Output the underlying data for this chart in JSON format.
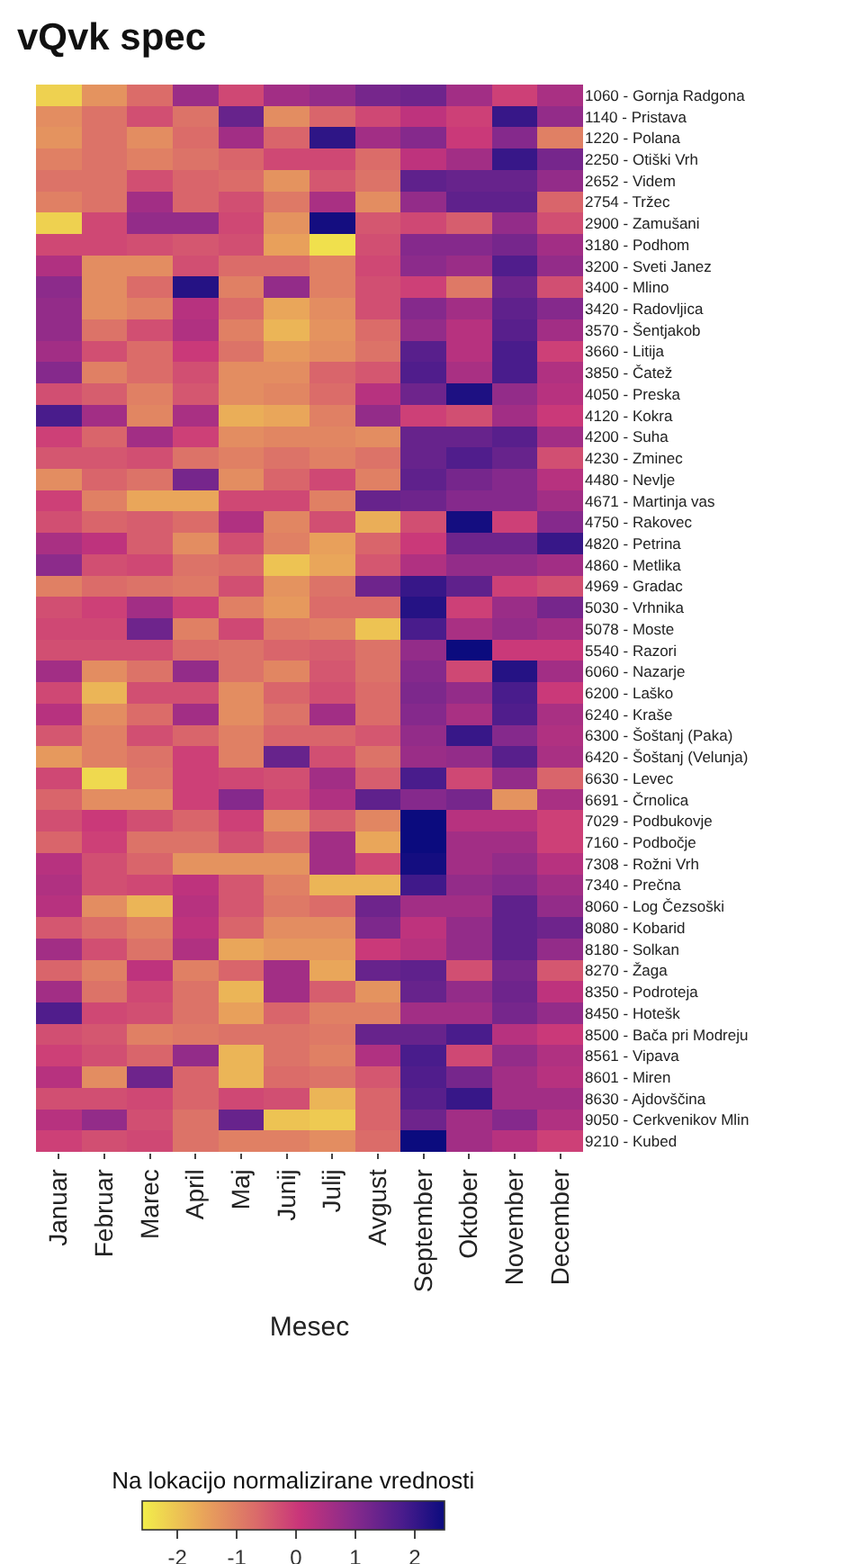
{
  "chart_data": {
    "type": "heatmap",
    "title": "vQvk spec",
    "xlabel": "Mesec",
    "clabel": "Na lokacijo normalizirane vrednosti",
    "categories": [
      "Januar",
      "Februar",
      "Marec",
      "April",
      "Maj",
      "Junij",
      "Julij",
      "Avgust",
      "September",
      "Oktober",
      "November",
      "December"
    ],
    "y_categories": [
      "1060 - Gornja Radgona",
      "1140 - Pristava",
      "1220 - Polana",
      "2250 - Otiški Vrh",
      "2652 - Videm",
      "2754 - Tržec",
      "2900 - Zamušani",
      "3180 - Podhom",
      "3200 - Sveti Janez",
      "3400 - Mlino",
      "3420 - Radovljica",
      "3570 - Šentjakob",
      "3660 - Litija",
      "3850 - Čatež",
      "4050 - Preska",
      "4120 - Kokra",
      "4200 - Suha",
      "4230 - Zminec",
      "4480 - Nevlje",
      "4671 - Martinja vas",
      "4750 - Rakovec",
      "4820 - Petrina",
      "4860 - Metlika",
      "4969 - Gradac",
      "5030 - Vrhnika",
      "5078 - Moste",
      "5540 - Razori",
      "6060 - Nazarje",
      "6200 - Laško",
      "6240 - Kraše",
      "6300 - Šoštanj (Paka)",
      "6420 - Šoštanj (Velunja)",
      "6630 - Levec",
      "6691 - Črnolica",
      "7029 - Podbukovje",
      "7160 - Podbočje",
      "7308 - Rožni Vrh",
      "7340 - Prečna",
      "8060 - Log Čezsoški",
      "8080 - Kobarid",
      "8180 - Solkan",
      "8270 - Žaga",
      "8350 - Podroteja",
      "8450 - Hotešk",
      "8500 - Bača pri Modreju",
      "8561 - Vipava",
      "8601 - Miren",
      "8630 - Ajdovščina",
      "9050 - Cerkvenikov Mlin",
      "9210 - Kubed"
    ],
    "cells": [
      [
        -2.2,
        -1.3,
        -0.7,
        0.7,
        -0.2,
        0.6,
        0.8,
        1.2,
        1.3,
        0.6,
        -0.1,
        0.5
      ],
      [
        -1.2,
        -0.8,
        -0.3,
        -0.8,
        1.4,
        -1.2,
        -0.6,
        -0.2,
        0.2,
        -0.1,
        2.0,
        0.8
      ],
      [
        -1.3,
        -0.8,
        -1.2,
        -0.7,
        0.6,
        -0.6,
        2.1,
        0.6,
        1.0,
        0.0,
        1.0,
        -1.0
      ],
      [
        -1.0,
        -0.8,
        -1.0,
        -0.8,
        -0.6,
        -0.2,
        -0.2,
        -0.7,
        0.2,
        0.6,
        2.0,
        1.2
      ],
      [
        -0.8,
        -0.8,
        -0.3,
        -0.6,
        -0.7,
        -1.3,
        -0.4,
        -0.8,
        1.5,
        1.4,
        1.4,
        0.8
      ],
      [
        -1.0,
        -0.8,
        0.6,
        -0.6,
        -0.3,
        -0.9,
        0.5,
        -1.2,
        0.8,
        1.5,
        1.5,
        -0.6
      ],
      [
        -2.2,
        -0.2,
        0.8,
        0.8,
        -0.2,
        -1.3,
        2.4,
        -0.4,
        -0.2,
        -0.5,
        0.8,
        -0.3
      ],
      [
        -0.2,
        -0.2,
        -0.3,
        -0.4,
        -0.3,
        -1.5,
        -2.4,
        -0.3,
        1.0,
        1.0,
        1.2,
        0.6
      ],
      [
        0.4,
        -1.2,
        -1.2,
        -0.3,
        -0.7,
        -0.7,
        -1.0,
        -0.2,
        0.9,
        0.7,
        1.7,
        0.8
      ],
      [
        0.9,
        -1.2,
        -0.7,
        2.2,
        -1.0,
        0.8,
        -1.0,
        -0.3,
        -0.1,
        -0.9,
        1.3,
        -0.3
      ],
      [
        0.8,
        -1.2,
        -1.0,
        0.3,
        -0.7,
        -1.6,
        -1.2,
        -0.3,
        1.0,
        0.6,
        1.5,
        1.0
      ],
      [
        0.8,
        -0.8,
        -0.3,
        0.4,
        -1.0,
        -1.8,
        -1.3,
        -0.7,
        0.8,
        0.3,
        1.6,
        0.6
      ],
      [
        0.6,
        -0.3,
        -0.7,
        0.0,
        -0.8,
        -1.4,
        -1.2,
        -0.8,
        1.6,
        0.3,
        1.8,
        -0.1
      ],
      [
        1.0,
        -1.0,
        -0.7,
        -0.3,
        -1.2,
        -1.2,
        -0.6,
        -0.4,
        1.7,
        0.5,
        1.8,
        0.4
      ],
      [
        -0.3,
        -0.5,
        -1.0,
        -0.4,
        -1.2,
        -1.1,
        -0.7,
        0.3,
        1.3,
        2.3,
        0.8,
        0.3
      ],
      [
        1.8,
        0.6,
        -1.1,
        0.5,
        -1.7,
        -1.6,
        -1.0,
        0.8,
        -0.1,
        -0.3,
        0.6,
        0.0
      ],
      [
        -0.1,
        -0.6,
        0.6,
        -0.1,
        -1.2,
        -1.1,
        -1.1,
        -1.2,
        1.4,
        1.4,
        1.6,
        0.6
      ],
      [
        -0.4,
        -0.4,
        -0.3,
        -0.8,
        -1.0,
        -0.8,
        -1.0,
        -0.8,
        1.4,
        1.7,
        1.4,
        -0.3
      ],
      [
        -1.2,
        -0.6,
        -0.8,
        1.2,
        -1.2,
        -0.6,
        -0.2,
        -1.0,
        1.5,
        1.2,
        1.0,
        0.3
      ],
      [
        -0.1,
        -1.0,
        -1.6,
        -1.6,
        -0.2,
        -0.2,
        -1.0,
        1.4,
        1.3,
        1.0,
        1.0,
        0.6
      ],
      [
        -0.3,
        -0.6,
        -0.5,
        -0.7,
        0.4,
        -1.1,
        -0.3,
        -1.7,
        -0.3,
        2.4,
        -0.1,
        1.0
      ],
      [
        0.5,
        0.2,
        -0.5,
        -1.2,
        -0.3,
        -1.0,
        -1.5,
        -0.6,
        0.0,
        1.3,
        1.3,
        2.0
      ],
      [
        0.9,
        -0.3,
        -0.2,
        -0.8,
        -0.7,
        -2.0,
        -1.6,
        -0.4,
        0.4,
        0.8,
        0.8,
        0.6
      ],
      [
        -1.0,
        -0.7,
        -0.8,
        -0.9,
        -0.3,
        -1.3,
        -0.8,
        1.3,
        2.0,
        1.5,
        -0.1,
        -0.3
      ],
      [
        -0.3,
        -0.1,
        0.6,
        -0.1,
        -1.0,
        -1.4,
        -0.7,
        -0.7,
        2.2,
        -0.1,
        0.7,
        1.2
      ],
      [
        -0.2,
        -0.2,
        1.3,
        -1.0,
        -0.2,
        -0.9,
        -1.0,
        -2.0,
        1.8,
        0.5,
        0.8,
        0.6
      ],
      [
        -0.3,
        -0.3,
        -0.3,
        -0.7,
        -0.8,
        -0.6,
        -0.5,
        -0.8,
        0.8,
        2.5,
        0.0,
        0.0
      ],
      [
        0.6,
        -1.2,
        -0.8,
        0.8,
        -0.8,
        -1.1,
        -0.4,
        -0.8,
        1.0,
        -0.2,
        2.2,
        0.6
      ],
      [
        -0.2,
        -1.8,
        -0.3,
        -0.3,
        -1.2,
        -0.6,
        -0.3,
        -0.7,
        1.1,
        0.8,
        1.8,
        0.0
      ],
      [
        0.3,
        -1.2,
        -0.7,
        0.6,
        -1.2,
        -0.8,
        0.6,
        -0.7,
        1.0,
        0.5,
        1.7,
        0.5
      ],
      [
        -0.4,
        -1.0,
        -0.3,
        -0.6,
        -1.0,
        -0.6,
        -0.6,
        -0.4,
        0.8,
        2.0,
        1.0,
        0.4
      ],
      [
        -1.4,
        -1.0,
        -0.8,
        -0.1,
        -1.0,
        1.4,
        -0.3,
        -0.8,
        0.7,
        0.8,
        1.6,
        0.5
      ],
      [
        -0.2,
        -2.3,
        -0.9,
        -0.1,
        -0.2,
        -0.3,
        0.6,
        -0.5,
        1.8,
        -0.2,
        0.8,
        -0.6
      ],
      [
        -0.6,
        -1.2,
        -1.2,
        -0.1,
        1.0,
        -0.2,
        0.4,
        1.5,
        1.0,
        1.2,
        -1.3,
        0.5
      ],
      [
        -0.3,
        0.0,
        -0.3,
        -0.6,
        -0.1,
        -1.2,
        -0.5,
        -1.1,
        2.5,
        0.3,
        0.3,
        -0.1
      ],
      [
        -0.6,
        -0.1,
        -0.8,
        -0.8,
        -0.3,
        -0.7,
        0.6,
        -1.6,
        2.5,
        0.6,
        0.6,
        -0.1
      ],
      [
        0.3,
        -0.3,
        -0.6,
        -1.3,
        -1.3,
        -1.3,
        0.6,
        -0.2,
        2.4,
        0.6,
        0.8,
        0.3
      ],
      [
        0.4,
        -0.3,
        -0.2,
        0.2,
        -0.4,
        -1.0,
        -1.8,
        -1.8,
        1.9,
        0.8,
        1.0,
        0.6
      ],
      [
        0.3,
        -1.2,
        -1.8,
        0.3,
        -0.4,
        -0.9,
        -0.7,
        1.3,
        0.6,
        0.6,
        1.5,
        0.8
      ],
      [
        -0.4,
        -0.7,
        -1.0,
        0.2,
        -0.6,
        -1.2,
        -1.2,
        1.1,
        0.2,
        0.8,
        1.5,
        1.3
      ],
      [
        0.6,
        -0.3,
        -0.8,
        0.4,
        -1.6,
        -1.4,
        -1.4,
        0.0,
        0.3,
        0.8,
        1.5,
        0.8
      ],
      [
        -0.6,
        -1.0,
        0.2,
        -1.0,
        -0.6,
        0.6,
        -1.6,
        1.4,
        1.5,
        -0.3,
        1.2,
        -0.4
      ],
      [
        0.6,
        -0.8,
        -0.2,
        -0.8,
        -1.8,
        0.6,
        -0.5,
        -1.3,
        1.4,
        0.8,
        1.3,
        0.2
      ],
      [
        1.7,
        -0.2,
        -0.3,
        -0.8,
        -1.5,
        -0.6,
        -1.0,
        -1.0,
        0.6,
        0.6,
        1.2,
        0.8
      ],
      [
        -0.3,
        -0.4,
        -1.0,
        -0.9,
        -0.8,
        -0.8,
        -0.9,
        1.4,
        1.4,
        1.8,
        0.3,
        0.0
      ],
      [
        -0.1,
        -0.3,
        -0.6,
        0.8,
        -1.8,
        -0.8,
        -1.0,
        0.4,
        1.8,
        -0.2,
        0.8,
        0.4
      ],
      [
        0.3,
        -1.2,
        1.3,
        -0.6,
        -1.8,
        -0.7,
        -0.8,
        -0.4,
        1.7,
        1.2,
        0.6,
        0.3
      ],
      [
        -0.3,
        -0.3,
        -0.2,
        -0.6,
        -0.2,
        -0.3,
        -1.8,
        -0.6,
        1.6,
        2.0,
        0.6,
        0.6
      ],
      [
        0.3,
        0.8,
        -0.3,
        -0.8,
        1.4,
        -2.0,
        -2.1,
        -0.6,
        1.3,
        0.6,
        1.0,
        0.4
      ],
      [
        -0.1,
        -0.3,
        -0.2,
        -0.8,
        -1.0,
        -1.0,
        -1.2,
        -0.7,
        2.5,
        0.6,
        0.3,
        -0.1
      ]
    ],
    "clim": [
      -2.6,
      2.5
    ],
    "cticks": [
      -2,
      -1,
      0,
      1,
      2
    ]
  }
}
